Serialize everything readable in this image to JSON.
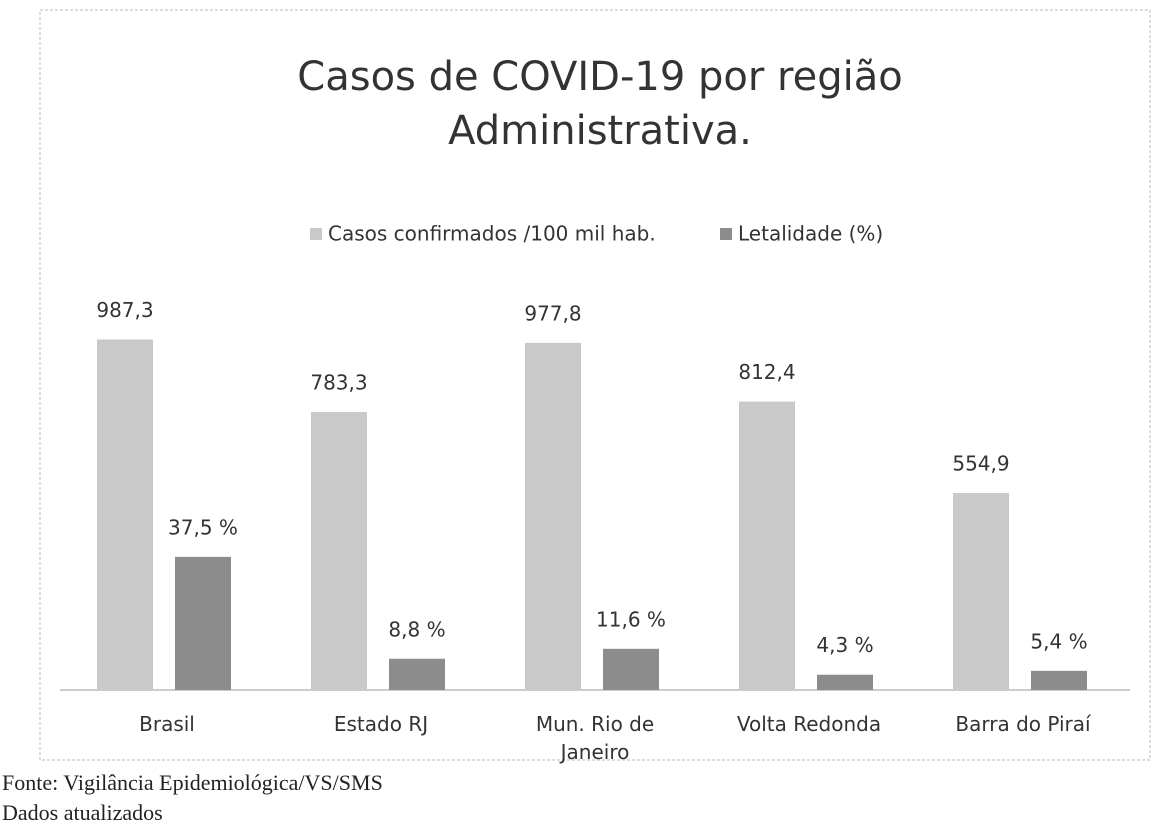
{
  "chart_data": {
    "type": "bar",
    "title": "Casos de COVID-19 por região Administrativa.",
    "categories": [
      "Brasil",
      "Estado RJ",
      "Mun. Rio de Janeiro",
      "Volta Redonda",
      "Barra do Piraí"
    ],
    "series": [
      {
        "name": "Casos confirmados /100 mil hab.",
        "color": "#c9c9c9",
        "values": [
          987.3,
          783.3,
          977.8,
          812.4,
          554.9
        ],
        "value_labels": [
          "987,3",
          "783,3",
          "977,8",
          "812,4",
          "554,9"
        ]
      },
      {
        "name": "Letalidade (%)",
        "color": "#8c8c8c",
        "axis": "y2",
        "values": [
          37.5,
          8.8,
          11.6,
          4.3,
          5.4
        ],
        "value_labels": [
          "37,5 %",
          "8,8 %",
          "11,6 %",
          "4,3 %",
          "5,4 %"
        ]
      }
    ],
    "ylim": [
      0,
      1000
    ],
    "y2lim": [
      0,
      100
    ],
    "legend": "top"
  },
  "footer": {
    "source": "Fonte: Vigilância Epidemiológica/VS/SMS",
    "note": "Dados atualizados"
  }
}
